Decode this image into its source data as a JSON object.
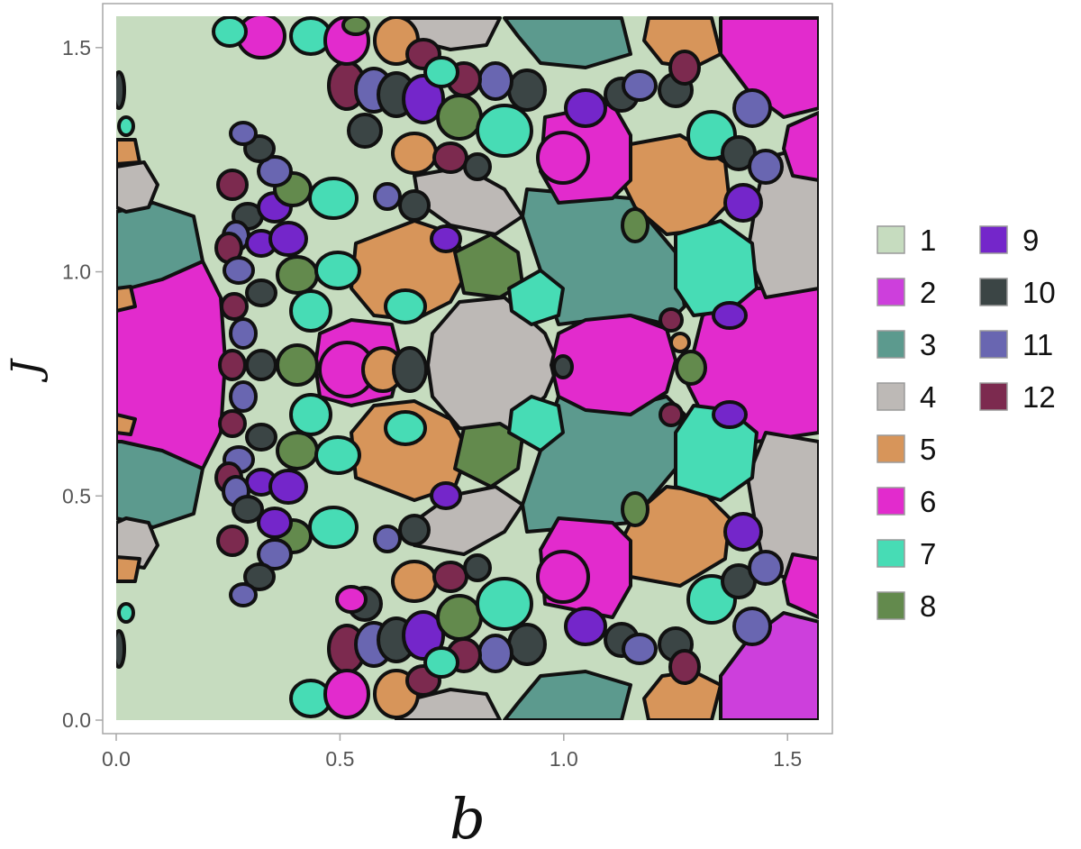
{
  "chart_data": {
    "type": "heatmap",
    "title": "",
    "xlabel": "b",
    "ylabel": "J",
    "xlim": [
      0.0,
      1.57
    ],
    "ylim": [
      0.0,
      1.57
    ],
    "x_ticks": [
      "0.0",
      "0.5",
      "1.0",
      "1.5"
    ],
    "y_ticks": [
      "0.0",
      "0.5",
      "1.0",
      "1.5"
    ],
    "legend_position": "right",
    "grid": false,
    "legend": [
      {
        "label": "1",
        "color": "#c6dcbf"
      },
      {
        "label": "2",
        "color": "#cd3fdc"
      },
      {
        "label": "3",
        "color": "#5c9a8e"
      },
      {
        "label": "4",
        "color": "#bdb9b6"
      },
      {
        "label": "5",
        "color": "#d7955a"
      },
      {
        "label": "6",
        "color": "#e22bcd"
      },
      {
        "label": "7",
        "color": "#47dcb5"
      },
      {
        "label": "8",
        "color": "#638a4d"
      },
      {
        "label": "9",
        "color": "#7426ca"
      },
      {
        "label": "10",
        "color": "#3b4545"
      },
      {
        "label": "11",
        "color": "#6966b1"
      },
      {
        "label": "12",
        "color": "#7c2a4f"
      }
    ]
  }
}
